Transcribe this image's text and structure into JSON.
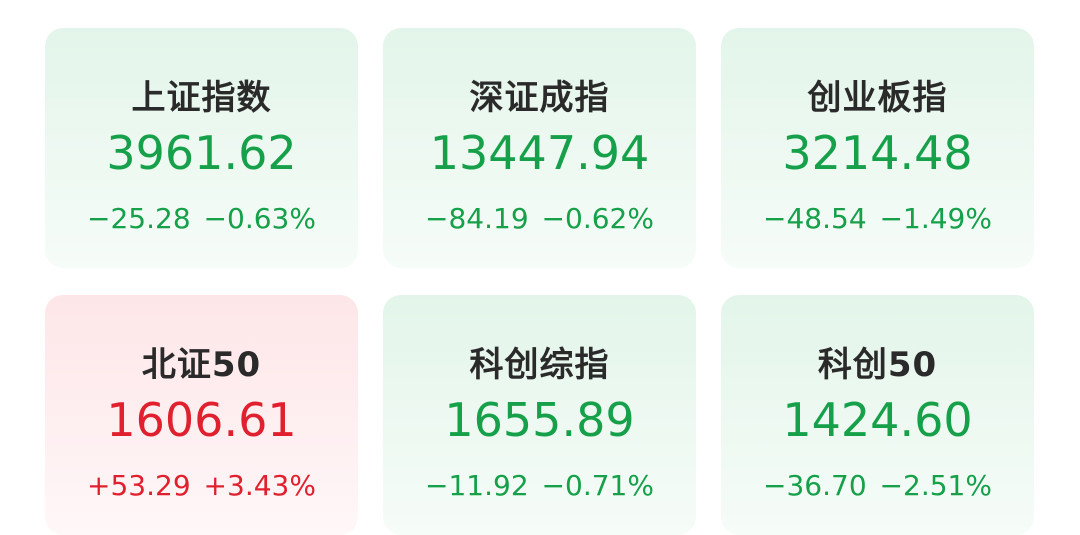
{
  "colors": {
    "down": "#16a04a",
    "up": "#e0202e"
  },
  "indices": [
    {
      "name": "上证指数",
      "value": "3961.62",
      "change": "−25.28",
      "pct": "−0.63%",
      "trend": "down"
    },
    {
      "name": "深证成指",
      "value": "13447.94",
      "change": "−84.19",
      "pct": "−0.62%",
      "trend": "down"
    },
    {
      "name": "创业板指",
      "value": "3214.48",
      "change": "−48.54",
      "pct": "−1.49%",
      "trend": "down"
    },
    {
      "name": "北证50",
      "value": "1606.61",
      "change": "+53.29",
      "pct": "+3.43%",
      "trend": "up"
    },
    {
      "name": "科创综指",
      "value": "1655.89",
      "change": "−11.92",
      "pct": "−0.71%",
      "trend": "down"
    },
    {
      "name": "科创50",
      "value": "1424.60",
      "change": "−36.70",
      "pct": "−2.51%",
      "trend": "down"
    }
  ]
}
